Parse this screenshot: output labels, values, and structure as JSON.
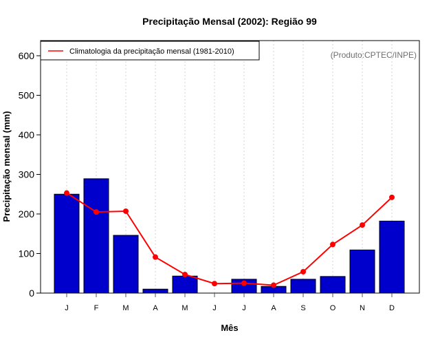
{
  "chart_data": {
    "type": "bar",
    "title": "Precipitação Mensal (2002): Região 99",
    "xlabel": "Mês",
    "ylabel": "Precipitação mensal (mm)",
    "ylim": [
      0,
      630
    ],
    "yticks": [
      0,
      100,
      200,
      300,
      400,
      500,
      600
    ],
    "categories": [
      "J",
      "F",
      "M",
      "A",
      "M",
      "J",
      "J",
      "A",
      "S",
      "O",
      "N",
      "D"
    ],
    "grid": "vertical dotted",
    "series": [
      {
        "name": "Precipitação mensal (2002)",
        "type": "bar",
        "color": "#0000cd",
        "values": [
          250,
          289,
          146,
          10,
          43,
          0,
          35,
          17,
          35,
          42,
          109,
          182
        ]
      },
      {
        "name": "Climatologia da precipitação mensal (1981-2010)",
        "type": "line",
        "color": "#ff0000",
        "values": [
          253,
          205,
          207,
          91,
          47,
          24,
          25,
          20,
          54,
          123,
          172,
          242
        ]
      }
    ],
    "legend": {
      "placement": "top-left",
      "entries": [
        "Climatologia da precipitação mensal (1981-2010)"
      ]
    },
    "annotation": "(Produto:CPTEC/INPE)"
  }
}
